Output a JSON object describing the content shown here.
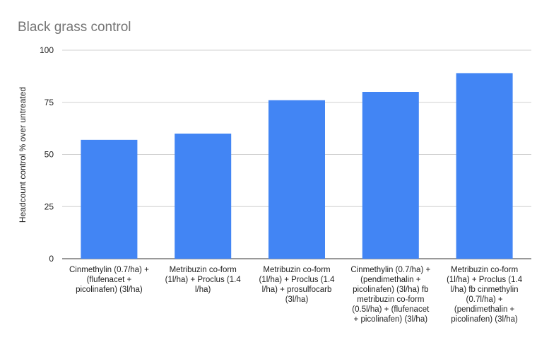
{
  "chart_data": {
    "type": "bar",
    "title": "Black grass control",
    "xlabel": "",
    "ylabel": "Headcount control % over untreated",
    "ylim": [
      0,
      100
    ],
    "yticks": [
      0,
      25,
      50,
      75,
      100
    ],
    "grid": true,
    "legend": "none",
    "bar_color": "#4285f4",
    "categories": [
      [
        "Cinmethylin (0.7/ha) +",
        "(flufenacet +",
        "picolinafen) (3l/ha)"
      ],
      [
        "Metribuzin co-form",
        "(1l/ha) + Proclus (1.4",
        "l/ha)"
      ],
      [
        "Metribuzin co-form",
        "(1l/ha) + Proclus (1.4",
        "l/ha) + prosulfocarb",
        "(3l/ha)"
      ],
      [
        "Cinmethylin (0.7/ha) +",
        "(pendimethalin +",
        "picolinafen) (3l/ha) fb",
        "metribuzin co-form",
        "(0.5l/ha) + (flufenacet",
        "+ picolinafen) (3l/ha)"
      ],
      [
        "Metribuzin co-form",
        "(1l/ha) + Proclus (1.4",
        "l/ha) fb cinmethylin",
        "(0.7l/ha) +",
        "(pendimethalin +",
        "picolinafen) (3l/ha)"
      ]
    ],
    "values": [
      57,
      60,
      76,
      80,
      89
    ]
  }
}
